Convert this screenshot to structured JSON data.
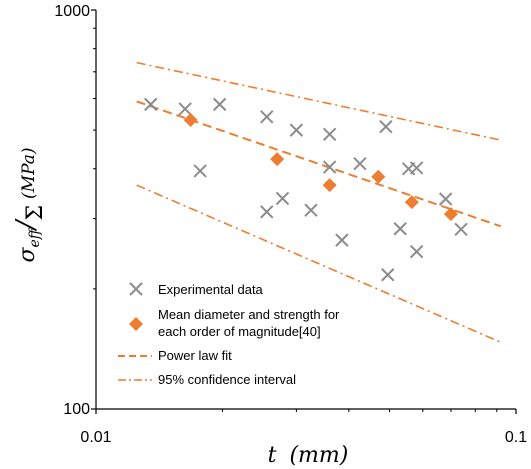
{
  "chart_data": {
    "type": "scatter",
    "x_scale": "log",
    "y_scale": "log",
    "xlim": [
      0.01,
      0.1
    ],
    "ylim": [
      100,
      1000
    ],
    "x_ticks": [
      "0.01",
      "0.1"
    ],
    "y_ticks": [
      "100",
      "1000"
    ],
    "grid": false,
    "legend_position": "bottom-left",
    "x_axis_label": {
      "var": "t",
      "unit": "(mm)"
    },
    "y_axis_label": {
      "num": "σ",
      "num_sub": "eff",
      "den": "Σ",
      "unit": "(MPa)"
    },
    "series": [
      {
        "name": "Experimental data",
        "marker": "x",
        "color": "#8c8c8c",
        "points": [
          [
            0.0135,
            580
          ],
          [
            0.0163,
            565
          ],
          [
            0.0197,
            580
          ],
          [
            0.0177,
            395
          ],
          [
            0.0255,
            540
          ],
          [
            0.0255,
            312
          ],
          [
            0.0278,
            337
          ],
          [
            0.03,
            500
          ],
          [
            0.0325,
            315
          ],
          [
            0.036,
            488
          ],
          [
            0.036,
            404
          ],
          [
            0.0385,
            265
          ],
          [
            0.0425,
            412
          ],
          [
            0.049,
            510
          ],
          [
            0.0495,
            217
          ],
          [
            0.053,
            283
          ],
          [
            0.0555,
            400
          ],
          [
            0.058,
            402
          ],
          [
            0.058,
            248
          ],
          [
            0.068,
            336
          ],
          [
            0.074,
            282
          ]
        ]
      },
      {
        "name": "Mean diameter and strength for each order of magnitude[40]",
        "legend_lines": [
          "Mean diameter and strength for",
          "each order of magnitude[40]"
        ],
        "marker": "diamond",
        "color": "#ed7d31",
        "points": [
          [
            0.0168,
            530
          ],
          [
            0.027,
            423
          ],
          [
            0.036,
            364
          ],
          [
            0.047,
            382
          ],
          [
            0.0565,
            330
          ],
          [
            0.07,
            308
          ]
        ]
      },
      {
        "name": "Power law fit",
        "style": "dashed",
        "color": "#ed7d31",
        "points": [
          [
            0.0125,
            590
          ],
          [
            0.092,
            287
          ]
        ]
      },
      {
        "name": "95% confidence interval",
        "style": "dash-dot",
        "color": "#ed7d31",
        "upper": [
          [
            0.0125,
            738
          ],
          [
            0.092,
            472
          ]
        ],
        "lower": [
          [
            0.0125,
            364
          ],
          [
            0.092,
            147
          ]
        ]
      }
    ]
  }
}
